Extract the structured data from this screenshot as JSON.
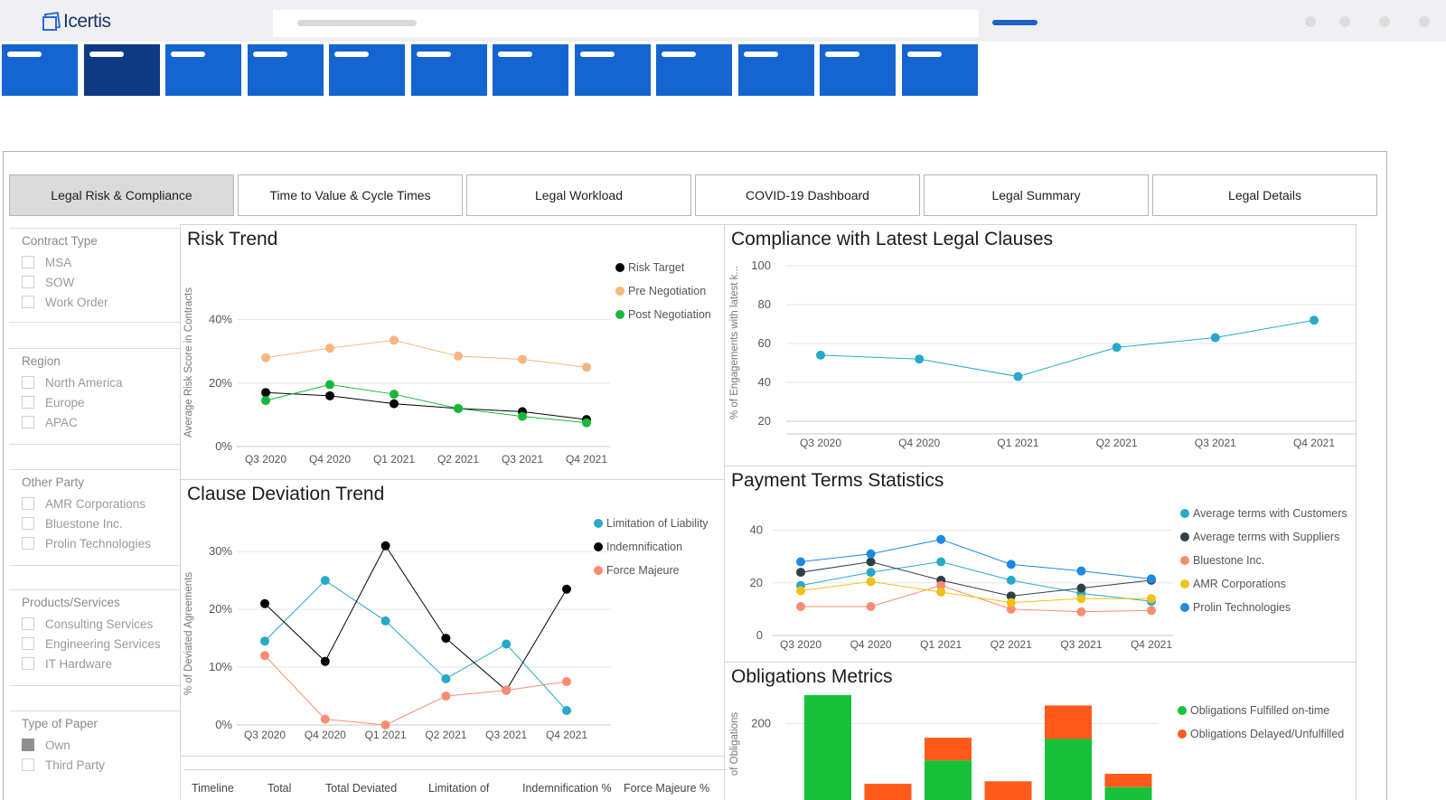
{
  "app": {
    "logo_text": "Icertis"
  },
  "dashboard_tabs": [
    {
      "label": "Legal Risk & Compliance",
      "active": true
    },
    {
      "label": "Time to Value & Cycle Times",
      "active": false
    },
    {
      "label": "Legal Workload",
      "active": false
    },
    {
      "label": "COVID-19 Dashboard",
      "active": false
    },
    {
      "label": "Legal Summary",
      "active": false
    },
    {
      "label": "Legal Details",
      "active": false
    }
  ],
  "filters": {
    "contract_type": {
      "title": "Contract Type",
      "items": [
        "MSA",
        "SOW",
        "Work Order"
      ]
    },
    "region": {
      "title": "Region",
      "items": [
        "North America",
        "Europe",
        "APAC"
      ]
    },
    "other_party": {
      "title": "Other Party",
      "items": [
        "AMR Corporations",
        "Bluestone Inc.",
        "Prolin Technologies"
      ]
    },
    "products": {
      "title": "Products/Services",
      "items": [
        "Consulting Services",
        "Engineering Services",
        "IT Hardware"
      ]
    },
    "paper": {
      "title": "Type of Paper",
      "items": [
        "Own",
        "Third Party"
      ],
      "checked": [
        "Own"
      ]
    }
  },
  "table_headers": [
    "Timeline",
    "Total",
    "Total Deviated",
    "Limitation of",
    "Indemnification %",
    "Force Majeure %"
  ],
  "colors": {
    "primary": "#1565d0",
    "active_nav": "#0d3a83"
  },
  "chart_data": [
    {
      "id": "risk",
      "type": "line",
      "title": "Risk Trend",
      "ylabel": "Average Risk Score in Contracts",
      "categories": [
        "Q3 2020",
        "Q4 2020",
        "Q1 2021",
        "Q2 2021",
        "Q3 2021",
        "Q4 2021"
      ],
      "ylim": [
        0,
        45
      ],
      "yticks": [
        0,
        20,
        40
      ],
      "ytick_labels": [
        "0%",
        "20%",
        "40%"
      ],
      "series": [
        {
          "name": "Risk Target",
          "color": "#000000",
          "values": [
            17,
            16,
            13.5,
            12,
            11,
            8.5
          ]
        },
        {
          "name": "Pre Negotiation",
          "color": "#f5b77c",
          "values": [
            28,
            31,
            33.5,
            28.5,
            27.5,
            25
          ]
        },
        {
          "name": "Post Negotiation",
          "color": "#17b83a",
          "values": [
            14.5,
            19.5,
            16.5,
            12,
            9.5,
            7.5
          ]
        }
      ]
    },
    {
      "id": "compliance",
      "type": "line",
      "title": "Compliance with Latest Legal Clauses",
      "ylabel": "% of Engagements with latest k...",
      "categories": [
        "Q3 2020",
        "Q4 2020",
        "Q1 2021",
        "Q2 2021",
        "Q3 2021",
        "Q4 2021"
      ],
      "ylim": [
        20,
        100
      ],
      "yticks": [
        20,
        40,
        60,
        80,
        100
      ],
      "ytick_labels": [
        "20",
        "40",
        "60",
        "80",
        "100"
      ],
      "series": [
        {
          "name": "",
          "color": "#27a9c9",
          "values": [
            54,
            52,
            43,
            58,
            63,
            72
          ]
        }
      ]
    },
    {
      "id": "clause",
      "type": "line",
      "title": "Clause Deviation Trend",
      "ylabel": "% of Deviated Agreements",
      "categories": [
        "Q3 2020",
        "Q4 2020",
        "Q1 2021",
        "Q2 2021",
        "Q3 2021",
        "Q4 2021"
      ],
      "ylim": [
        0,
        33
      ],
      "yticks": [
        0,
        10,
        20,
        30
      ],
      "ytick_labels": [
        "0%",
        "10%",
        "20%",
        "30%"
      ],
      "series": [
        {
          "name": "Limitation of Liability",
          "color": "#27a9c9",
          "values": [
            14.5,
            25,
            18,
            8,
            14,
            2.5
          ]
        },
        {
          "name": "Indemnification",
          "color": "#000000",
          "values": [
            21,
            11,
            31,
            15,
            6,
            23.5
          ]
        },
        {
          "name": "Force Majeure",
          "color": "#fb8c73",
          "values": [
            12,
            1,
            0,
            5,
            6,
            7.5
          ]
        }
      ]
    },
    {
      "id": "payment",
      "type": "line",
      "title": "Payment  Terms Statistics",
      "ylabel": "",
      "categories": [
        "Q3 2020",
        "Q4 2020",
        "Q1 2021",
        "Q2 2021",
        "Q3 2021",
        "Q4 2021"
      ],
      "ylim": [
        0,
        45
      ],
      "yticks": [
        0,
        20,
        40
      ],
      "ytick_labels": [
        "0",
        "20",
        "40"
      ],
      "series": [
        {
          "name": "Average terms with Customers",
          "color": "#27a9c9",
          "values": [
            19,
            24,
            28,
            21,
            16,
            13
          ]
        },
        {
          "name": "Average terms with Suppliers",
          "color": "#2f3f47",
          "values": [
            24,
            28,
            21,
            15,
            18,
            21
          ]
        },
        {
          "name": "Bluestone Inc.",
          "color": "#fb8c73",
          "values": [
            11,
            11,
            19,
            10,
            9,
            9.5
          ]
        },
        {
          "name": "AMR Corporations",
          "color": "#f3c115",
          "values": [
            17,
            20.5,
            16.5,
            12.5,
            14,
            14
          ]
        },
        {
          "name": "Prolin Technologies",
          "color": "#1e88e5",
          "values": [
            28,
            31,
            36.5,
            27,
            24.5,
            21.5
          ]
        }
      ]
    },
    {
      "id": "obligations",
      "type": "bar",
      "stacked": true,
      "title": "Obligations Metrics",
      "ylabel": "of Obligations",
      "yticks": [
        200
      ],
      "ytick_labels": [
        "200"
      ],
      "ylim": [
        0,
        285
      ],
      "series": [
        {
          "name": "Obligations Fulfilled on-time",
          "color": "#17c23a",
          "values": [
            268,
            0,
            112,
            0,
            163,
            48
          ]
        },
        {
          "name": "Obligations Delayed/Unfulfilled",
          "color": "#ff5a1a",
          "values": [
            0,
            56,
            54,
            62,
            80,
            32
          ]
        }
      ]
    }
  ]
}
